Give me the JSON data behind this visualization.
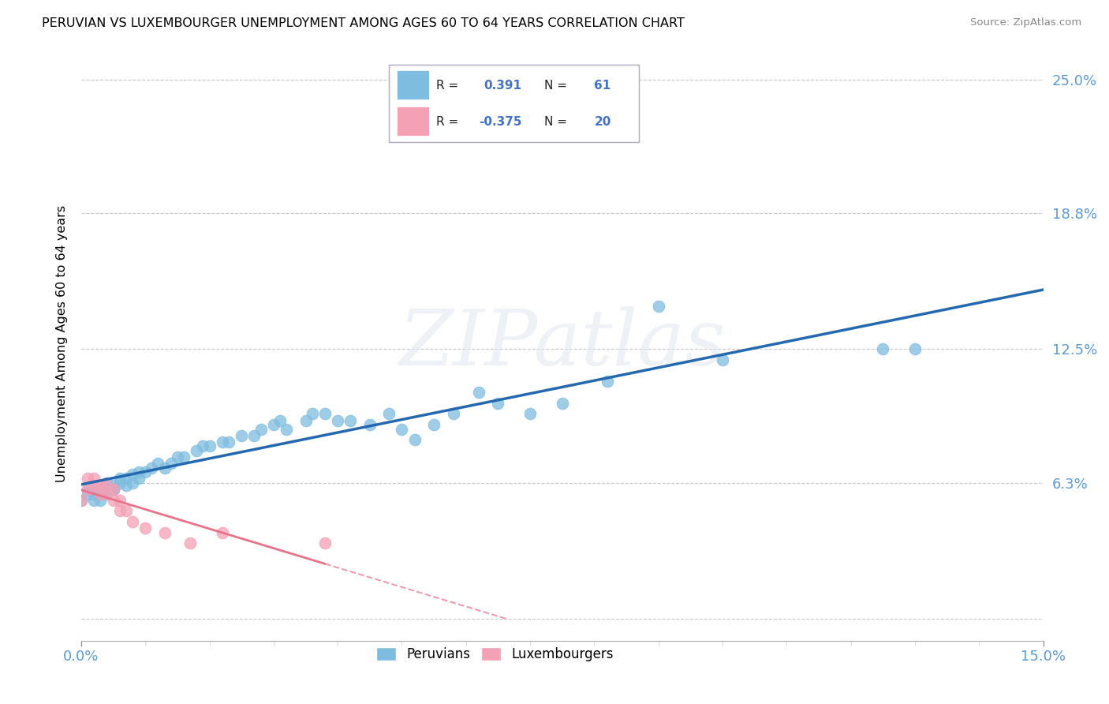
{
  "title": "PERUVIAN VS LUXEMBOURGER UNEMPLOYMENT AMONG AGES 60 TO 64 YEARS CORRELATION CHART",
  "source": "Source: ZipAtlas.com",
  "ylabel": "Unemployment Among Ages 60 to 64 years",
  "y_ticks": [
    0.0,
    0.063,
    0.125,
    0.188,
    0.25
  ],
  "y_tick_labels": [
    "",
    "6.3%",
    "12.5%",
    "18.8%",
    "25.0%"
  ],
  "xlim": [
    0.0,
    0.15
  ],
  "ylim": [
    -0.01,
    0.265
  ],
  "peruvians_R": 0.391,
  "peruvians_N": 61,
  "luxembourgers_R": -0.375,
  "luxembourgers_N": 20,
  "peruvian_color": "#7fbde0",
  "luxembourger_color": "#f4a0b5",
  "peruvian_line_color": "#2468b0",
  "luxembourger_line_color": "#e8728a",
  "background_color": "#ffffff",
  "peruvian_x": [
    0.0,
    0.001,
    0.001,
    0.002,
    0.002,
    0.002,
    0.003,
    0.003,
    0.003,
    0.004,
    0.004,
    0.004,
    0.005,
    0.005,
    0.005,
    0.006,
    0.006,
    0.007,
    0.007,
    0.008,
    0.008,
    0.009,
    0.009,
    0.01,
    0.011,
    0.012,
    0.013,
    0.014,
    0.015,
    0.016,
    0.018,
    0.019,
    0.02,
    0.022,
    0.023,
    0.025,
    0.027,
    0.028,
    0.03,
    0.031,
    0.032,
    0.035,
    0.036,
    0.038,
    0.04,
    0.042,
    0.045,
    0.048,
    0.05,
    0.052,
    0.055,
    0.058,
    0.062,
    0.065,
    0.07,
    0.075,
    0.082,
    0.09,
    0.1,
    0.125,
    0.13
  ],
  "peruvian_y": [
    0.055,
    0.058,
    0.06,
    0.055,
    0.06,
    0.058,
    0.055,
    0.06,
    0.058,
    0.06,
    0.063,
    0.058,
    0.06,
    0.062,
    0.06,
    0.063,
    0.065,
    0.062,
    0.065,
    0.063,
    0.067,
    0.065,
    0.068,
    0.068,
    0.07,
    0.072,
    0.07,
    0.072,
    0.075,
    0.075,
    0.078,
    0.08,
    0.08,
    0.082,
    0.082,
    0.085,
    0.085,
    0.088,
    0.09,
    0.092,
    0.088,
    0.092,
    0.095,
    0.095,
    0.092,
    0.092,
    0.09,
    0.095,
    0.088,
    0.083,
    0.09,
    0.095,
    0.105,
    0.1,
    0.095,
    0.1,
    0.11,
    0.145,
    0.12,
    0.125,
    0.125
  ],
  "luxembourger_x": [
    0.0,
    0.001,
    0.001,
    0.002,
    0.002,
    0.003,
    0.003,
    0.004,
    0.004,
    0.005,
    0.005,
    0.006,
    0.006,
    0.007,
    0.008,
    0.01,
    0.013,
    0.017,
    0.022,
    0.038
  ],
  "luxembourger_y": [
    0.055,
    0.065,
    0.06,
    0.065,
    0.062,
    0.058,
    0.062,
    0.058,
    0.062,
    0.055,
    0.06,
    0.055,
    0.05,
    0.05,
    0.045,
    0.042,
    0.04,
    0.035,
    0.04,
    0.035
  ]
}
